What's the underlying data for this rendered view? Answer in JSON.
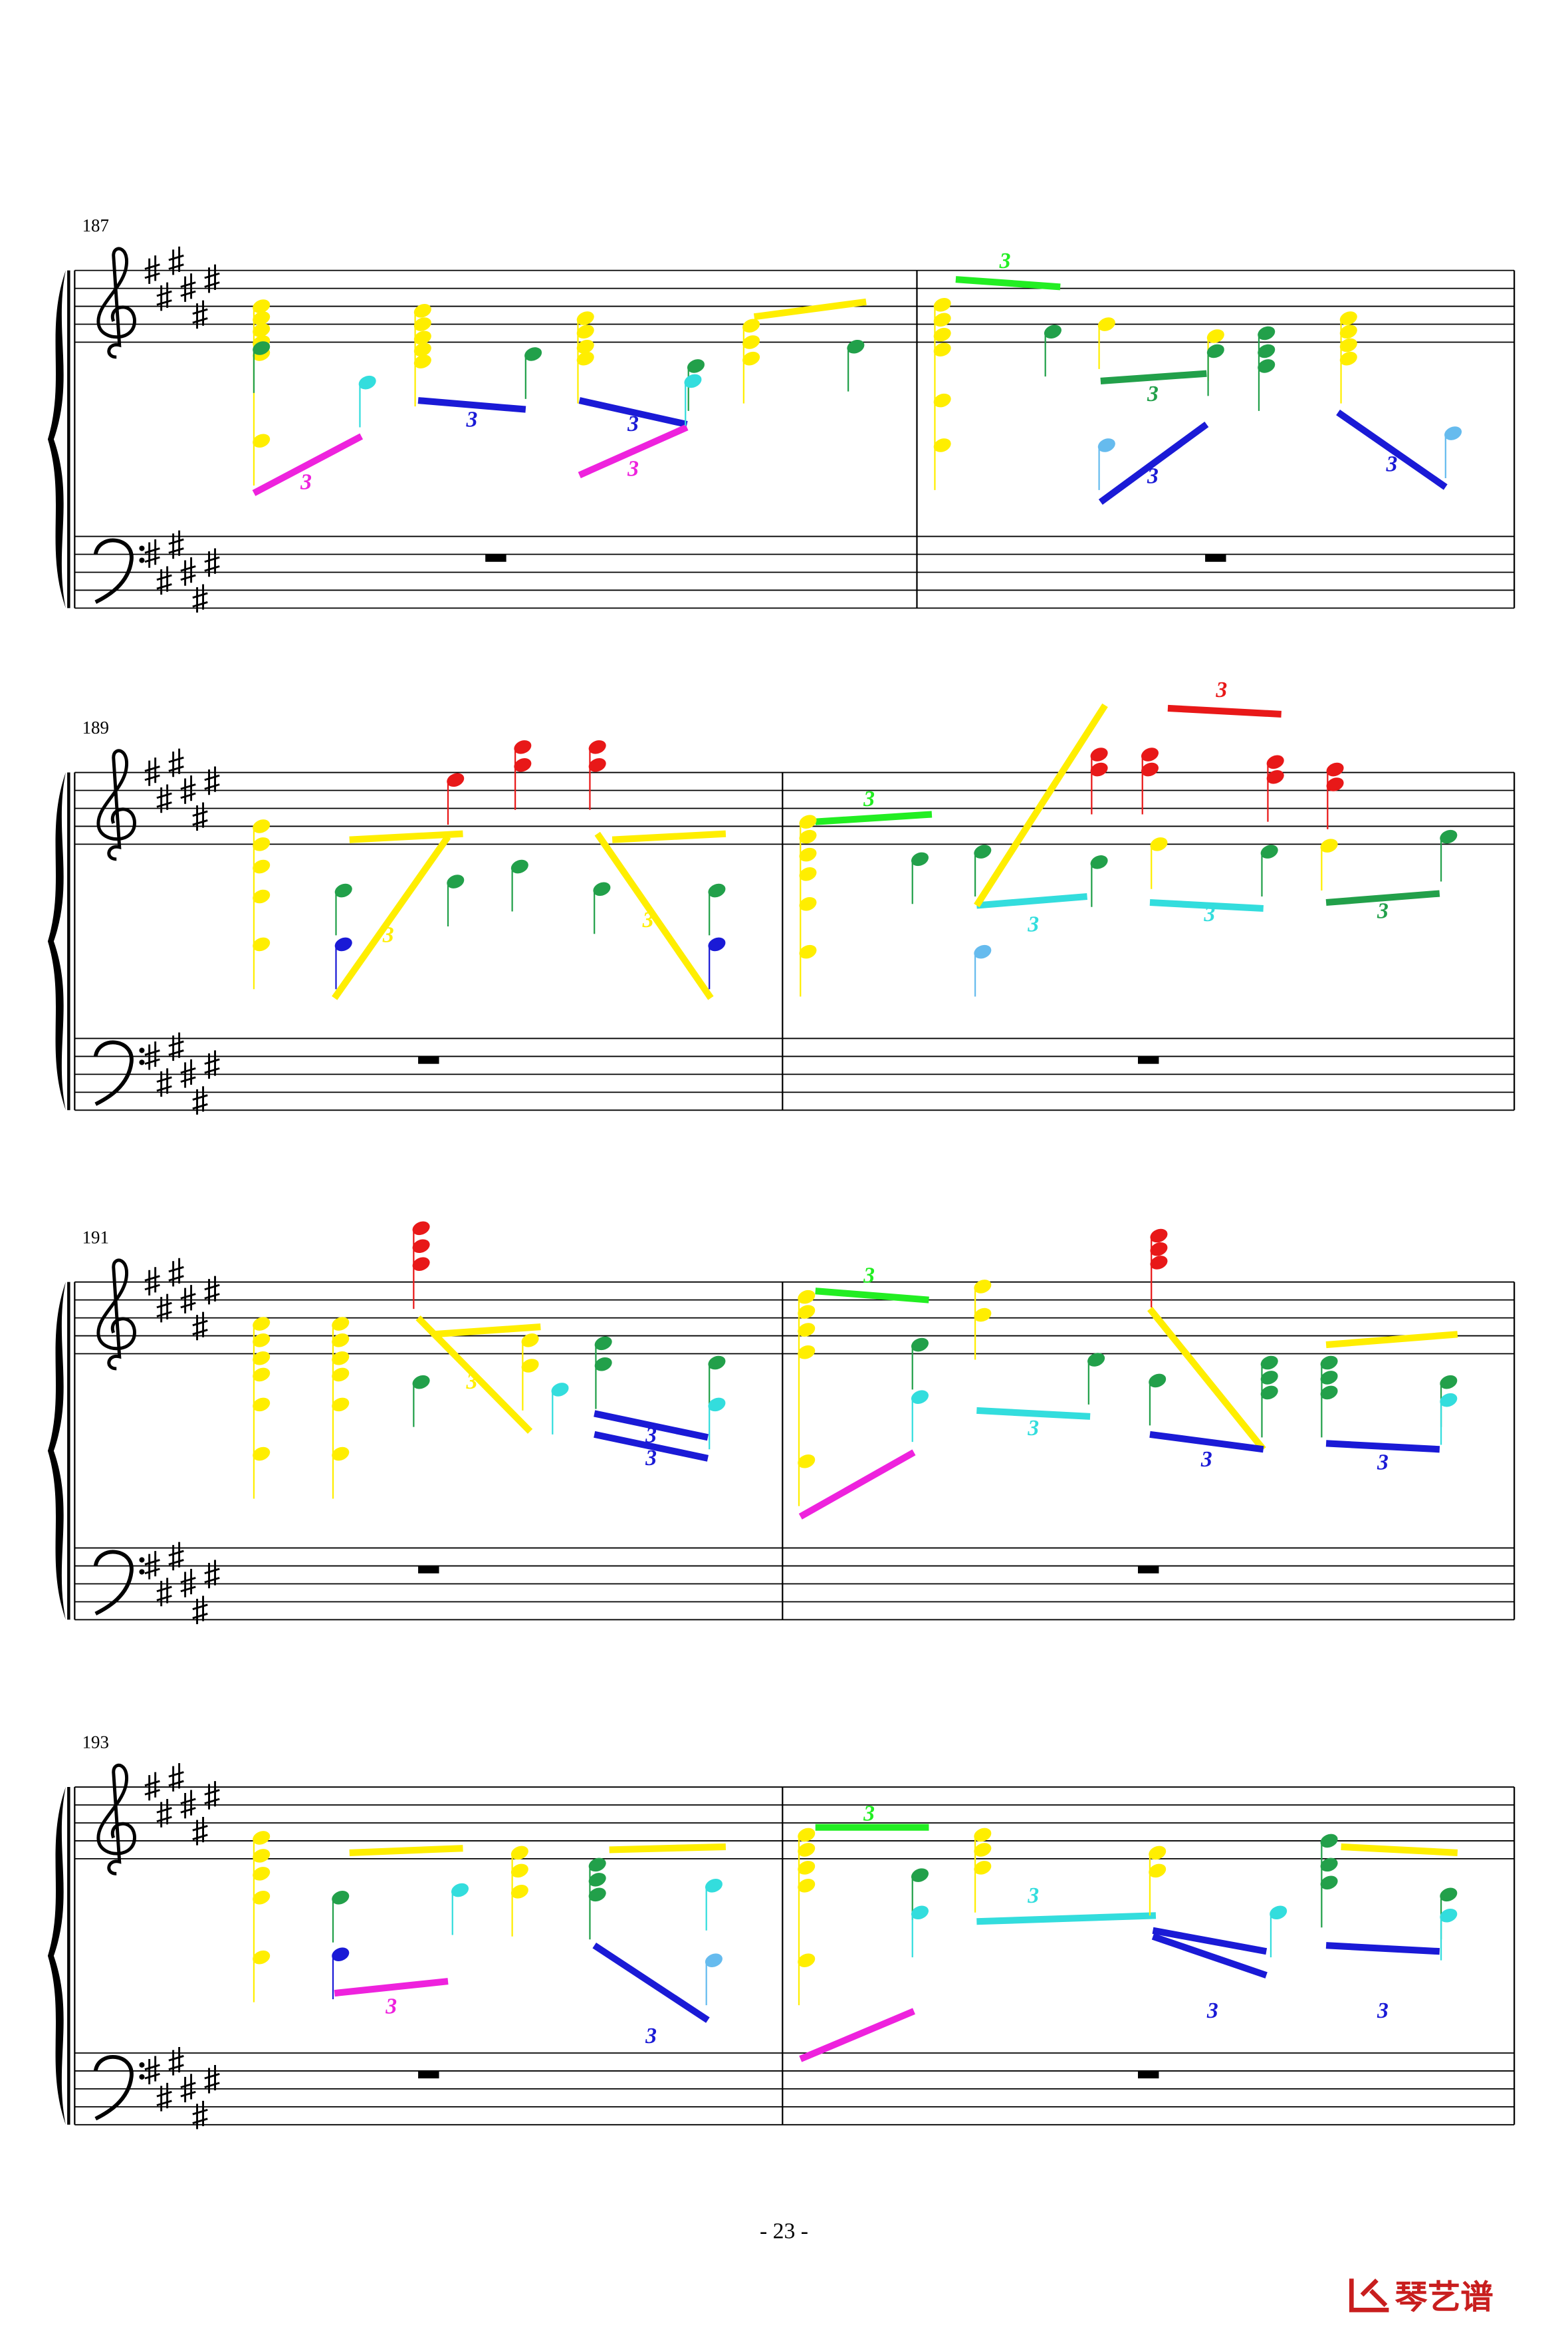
{
  "systems": [
    {
      "measure_number": "187",
      "tuplets": [
        "3",
        "3",
        "3",
        "3",
        "3",
        "3",
        "3",
        "3"
      ]
    },
    {
      "measure_number": "189",
      "tuplets": [
        "3",
        "3",
        "3",
        "3",
        "3",
        "3",
        "3"
      ]
    },
    {
      "measure_number": "191",
      "tuplets": [
        "3",
        "3",
        "3",
        "3",
        "3",
        "3",
        "3"
      ]
    },
    {
      "measure_number": "193",
      "tuplets": [
        "3",
        "3",
        "3",
        "3",
        "3",
        "3"
      ]
    }
  ],
  "footer": {
    "page_number": "- 23 -",
    "logo": "琴艺谱"
  }
}
